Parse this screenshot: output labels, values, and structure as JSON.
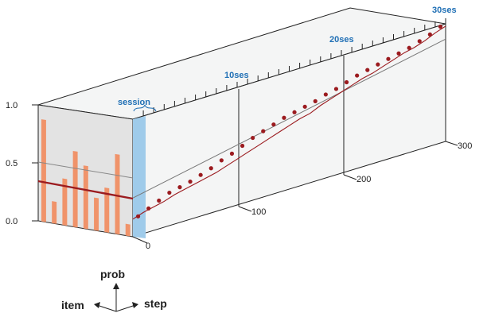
{
  "colors": {
    "accent_blue": "#1f6fb5",
    "session_band": "#9fcbea",
    "bar_fill": "#f0936a",
    "line_dark_red": "#9b1b1f",
    "face_grey": "#e3e3e3",
    "face_light": "#f4f5f5"
  },
  "labels": {
    "session": "session",
    "ses10": "10ses",
    "ses20": "20ses",
    "ses30": "30ses",
    "tick_0": "0",
    "tick_100": "100",
    "tick_200": "200",
    "tick_300": "300",
    "y_1": "1.0",
    "y_05": "0.5",
    "y_0": "0.0",
    "axis_prob": "prob",
    "axis_item": "item",
    "axis_step": "step"
  },
  "chart_data": {
    "type": "bar+line",
    "left_face_bars": {
      "values": [
        0.88,
        0.19,
        0.4,
        0.65,
        0.54,
        0.28,
        0.38,
        0.68,
        0.1
      ]
    },
    "left_face_mean": 0.35,
    "step_axis": {
      "range": [
        0,
        300
      ],
      "ticks": [
        0,
        100,
        200,
        300
      ]
    },
    "prob_axis": {
      "range": [
        0.0,
        1.0
      ],
      "ticks": [
        0.0,
        0.5,
        1.0
      ]
    },
    "session_markers": [
      10,
      20,
      30
    ],
    "session_points_prob": [
      0.16,
      0.2,
      0.24,
      0.28,
      0.3,
      0.32,
      0.35,
      0.38,
      0.42,
      0.45,
      0.49,
      0.53,
      0.56,
      0.59,
      0.62,
      0.64,
      0.66,
      0.68,
      0.71,
      0.73,
      0.76,
      0.79,
      0.81,
      0.83,
      0.85,
      0.87,
      0.89,
      0.92,
      0.95,
      0.99
    ],
    "step_curve_prob": [
      0.15,
      0.18,
      0.2,
      0.22,
      0.25,
      0.27,
      0.29,
      0.31,
      0.33,
      0.36,
      0.39,
      0.42,
      0.45,
      0.48,
      0.51,
      0.54,
      0.57,
      0.59,
      0.63,
      0.66,
      0.69,
      0.72,
      0.75,
      0.77,
      0.8,
      0.83,
      0.86,
      0.88,
      0.91,
      0.95,
      0.98
    ],
    "trend_line_prob": [
      0.33,
      0.87
    ]
  }
}
